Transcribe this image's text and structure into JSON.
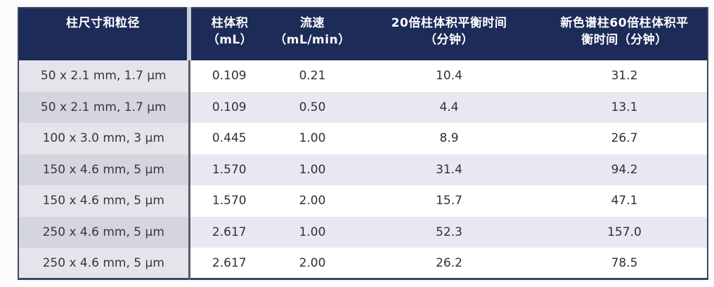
{
  "chart_data": {
    "type": "table",
    "columns": [
      "柱尺寸和粒径",
      "柱体积（mL）",
      "流速（mL/min）",
      "20倍柱体积平衡时间（分钟）",
      "新色谱柱60倍柱体积平衡时间（分钟）"
    ],
    "rows": [
      [
        "50 x 2.1 mm, 1.7 µm",
        "0.109",
        "0.21",
        "10.4",
        "31.2"
      ],
      [
        "50 x 2.1 mm, 1.7 µm",
        "0.109",
        "0.50",
        "4.4",
        "13.1"
      ],
      [
        "100 x 3.0 mm, 3 µm",
        "0.445",
        "1.00",
        "8.9",
        "26.7"
      ],
      [
        "150 x 4.6 mm, 5 µm",
        "1.570",
        "1.00",
        "31.4",
        "94.2"
      ],
      [
        "150 x 4.6 mm, 5 µm",
        "1.570",
        "2.00",
        "15.7",
        "47.1"
      ],
      [
        "250 x 4.6 mm, 5 µm",
        "2.617",
        "1.00",
        "52.3",
        "157.0"
      ],
      [
        "250 x 4.6 mm, 5 µm",
        "2.617",
        "2.00",
        "26.2",
        "78.5"
      ]
    ]
  },
  "headers_display": [
    {
      "line1": "柱尺寸和粒径",
      "line2": ""
    },
    {
      "line1": "柱体积",
      "line2": "（mL）"
    },
    {
      "line1": "流速",
      "line2": "（mL/min）"
    },
    {
      "line1": "20倍柱体积平衡时间",
      "line2": "（分钟）"
    },
    {
      "line1": "新色谱柱60倍柱体积平",
      "line2": "衡时间（分钟）"
    }
  ],
  "colors": {
    "header_bg": "#1d2b58",
    "header_text": "#ffffff",
    "band_light": "#ffffff",
    "band_shade": "#e8e9f0",
    "first_col_light": "#e4e4ea",
    "first_col_shade": "#d5d5df",
    "outer_border": "#3e4660"
  }
}
